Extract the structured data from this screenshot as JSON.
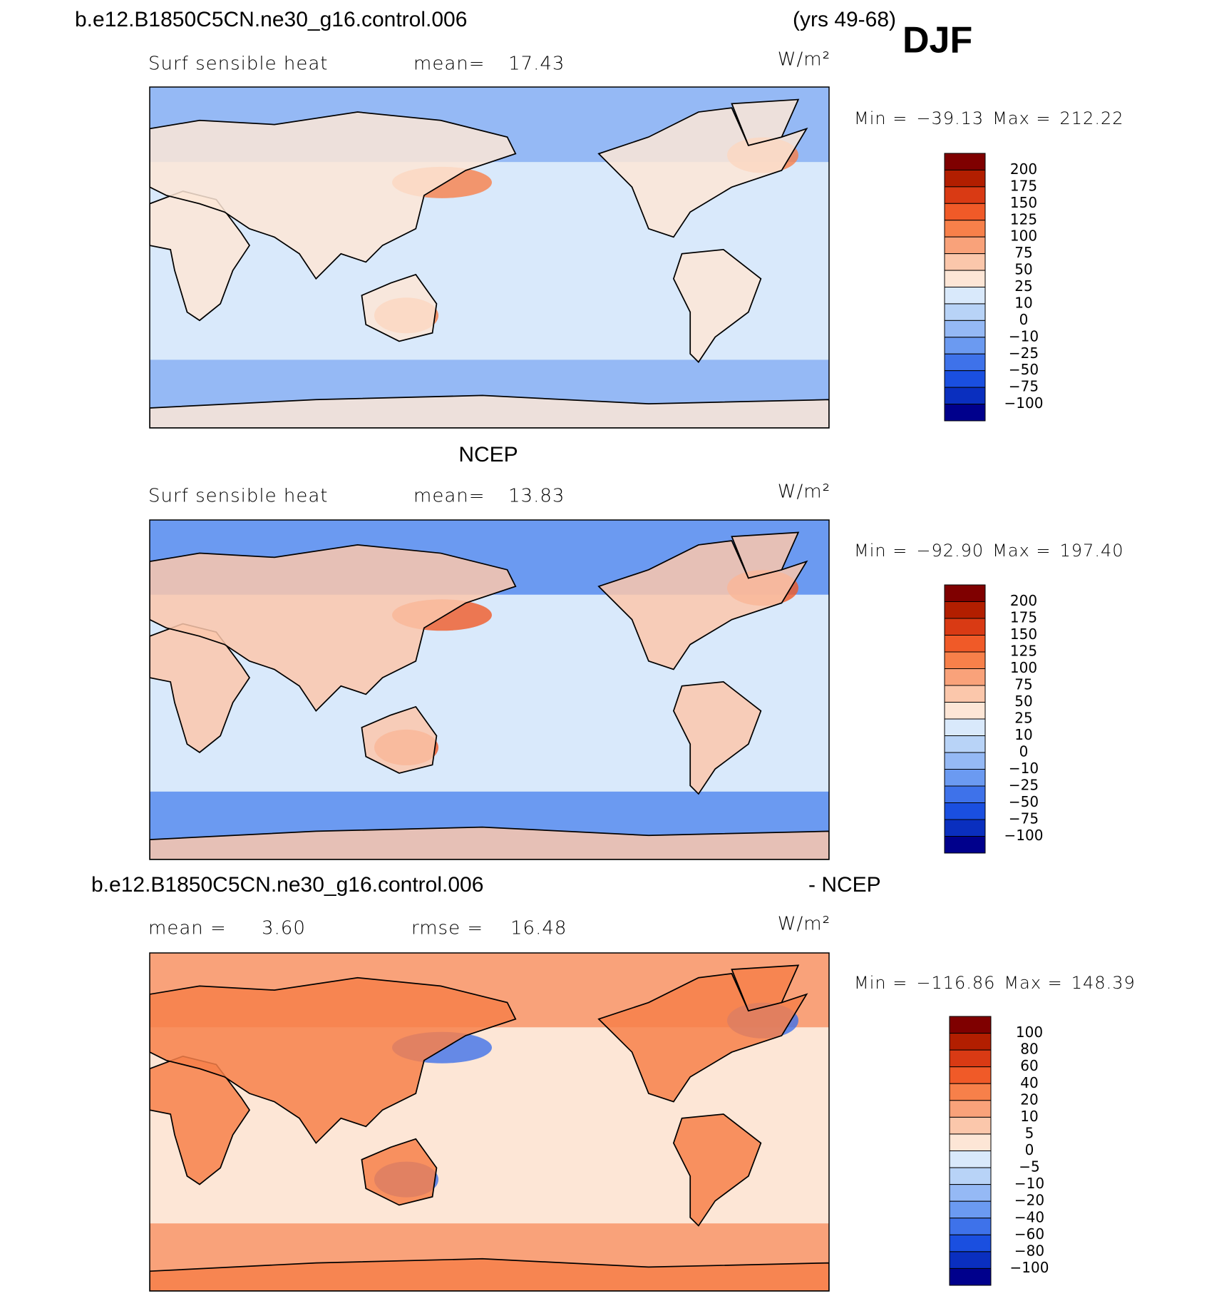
{
  "header": {
    "title": "b.e12.B1850C5CN.ne30_g16.control.006",
    "years": "(yrs 49-68)",
    "season": "DJF"
  },
  "colorbar_colors": [
    "#7f0000",
    "#b21e00",
    "#d93a14",
    "#f05a28",
    "#f7804a",
    "#f9a27a",
    "#fbc7ab",
    "#fde6d6",
    "#d9e9fb",
    "#b8d3f7",
    "#95b9f5",
    "#6b9af1",
    "#3e72ea",
    "#1a4fe0",
    "#0a2fbf",
    "#00008c"
  ],
  "panels": [
    {
      "stat1_label": "Surf sensible heat",
      "stat2_label": "mean=",
      "stat2": "17.43",
      "units": "W/m²",
      "min_label": "Min =",
      "min": "−39.13",
      "max_label": "Max =",
      "max": "212.22",
      "colorbar": [
        "200",
        "175",
        "150",
        "125",
        "100",
        "75",
        "50",
        "25",
        "10",
        "0",
        "−10",
        "−25",
        "−50",
        "−75",
        "−100"
      ]
    },
    {
      "title": "NCEP",
      "stat1_label": "Surf sensible heat",
      "stat2_label": "mean=",
      "stat2": "13.83",
      "units": "W/m²",
      "min_label": "Min =",
      "min": "−92.90",
      "max_label": "Max =",
      "max": "197.40",
      "colorbar": [
        "200",
        "175",
        "150",
        "125",
        "100",
        "75",
        "50",
        "25",
        "10",
        "0",
        "−10",
        "−25",
        "−50",
        "−75",
        "−100"
      ]
    },
    {
      "title": "b.e12.B1850C5CN.ne30_g16.control.006",
      "title_right": "- NCEP",
      "stat1_label": "mean =",
      "stat1": "3.60",
      "stat2_label": "rmse =",
      "stat2": "16.48",
      "units": "W/m²",
      "min_label": "Min =",
      "min": "−116.86",
      "max_label": "Max =",
      "max": "148.39",
      "colorbar": [
        "100",
        "80",
        "60",
        "40",
        "20",
        "10",
        "5",
        "0",
        "−5",
        "−10",
        "−20",
        "−40",
        "−60",
        "−80",
        "−100"
      ]
    }
  ]
}
